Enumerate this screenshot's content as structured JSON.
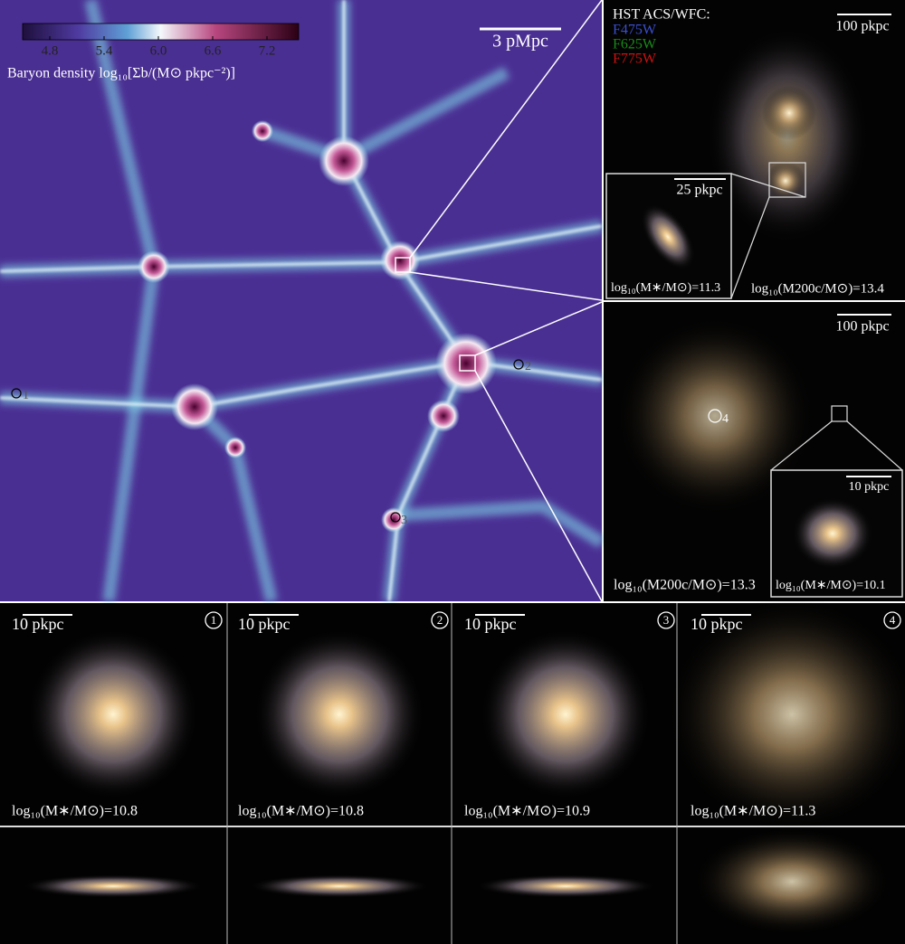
{
  "map": {
    "colorbar": {
      "label": "Baryon density log₁₀[Σb/(M⊙ pkpc⁻²)]",
      "lim": [
        4.5,
        7.55
      ],
      "ticks": [
        4.8,
        5.4,
        {
          "value": 6,
          "label": "6.0"
        },
        6.6,
        7.2
      ]
    },
    "scale_bar": "3 pMpc",
    "markers": [
      "1",
      "2",
      "3",
      "4"
    ]
  },
  "panel_a": {
    "filters_title": "HST ACS/WFC:",
    "filters": [
      "F475W",
      "F625W",
      "F775W"
    ],
    "scale_bar": "100 pkpc",
    "inset_scale_bar": "25 pkpc",
    "inset_mass": "log₁₀(M∗/M⊙)=11.3",
    "halo_mass": "log₁₀(M200c/M⊙)=13.4"
  },
  "panel_b": {
    "scale_bar": "100 pkpc",
    "inset_scale_bar": "10 pkpc",
    "inset_mass": "log₁₀(M∗/M⊙)=10.1",
    "halo_mass": "log₁₀(M200c/M⊙)=13.3"
  },
  "galaxies": [
    {
      "id": "1",
      "scale_bar": "10 pkpc",
      "mass": "log₁₀(M∗/M⊙)=10.8"
    },
    {
      "id": "2",
      "scale_bar": "10 pkpc",
      "mass": "log₁₀(M∗/M⊙)=10.8"
    },
    {
      "id": "3",
      "scale_bar": "10 pkpc",
      "mass": "log₁₀(M∗/M⊙)=10.9"
    },
    {
      "id": "4",
      "scale_bar": "10 pkpc",
      "mass": "log₁₀(M∗/M⊙)=11.3"
    }
  ]
}
